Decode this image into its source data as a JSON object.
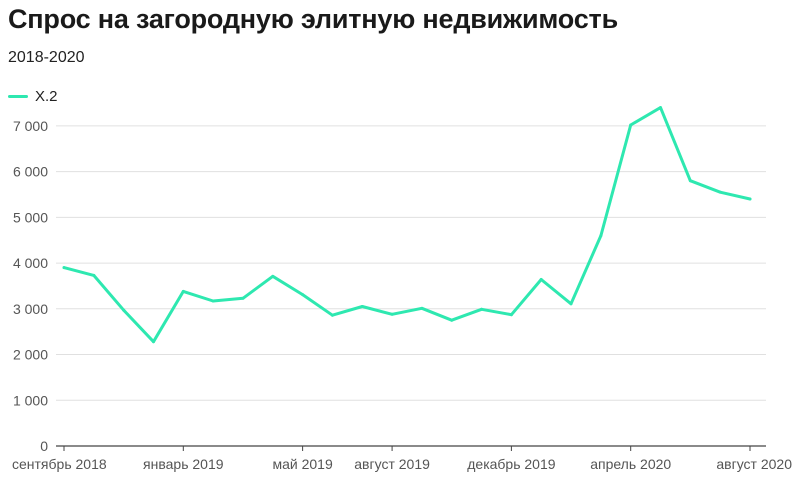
{
  "chart_data": {
    "type": "line",
    "title": "Спрос на загородную элитную недвижимость",
    "subtitle": "2018-2020",
    "xlabel": "",
    "ylabel": "",
    "ylim": [
      0,
      7500
    ],
    "yticks": [
      0,
      1000,
      2000,
      3000,
      4000,
      5000,
      6000,
      7000
    ],
    "ytick_labels": [
      "0",
      "1 000",
      "2 000",
      "3 000",
      "4 000",
      "5 000",
      "6 000",
      "7 000"
    ],
    "x_labels": [
      {
        "index": 0,
        "label": "сентябрь 2018"
      },
      {
        "index": 4,
        "label": "январь 2019"
      },
      {
        "index": 8,
        "label": "май 2019"
      },
      {
        "index": 11,
        "label": "август 2019"
      },
      {
        "index": 15,
        "label": "декабрь 2019"
      },
      {
        "index": 19,
        "label": "апрель 2020"
      },
      {
        "index": 23,
        "label": "август 2020"
      }
    ],
    "grid": true,
    "legend_position": "top-left",
    "series": [
      {
        "name": "Х.2",
        "color": "#2ee8b0",
        "values": [
          3900,
          3730,
          2970,
          2280,
          3380,
          3170,
          3230,
          3710,
          3310,
          2860,
          3050,
          2880,
          3010,
          2750,
          2990,
          2870,
          3640,
          3110,
          4600,
          7020,
          7400,
          5800,
          5550,
          5400
        ]
      }
    ]
  }
}
